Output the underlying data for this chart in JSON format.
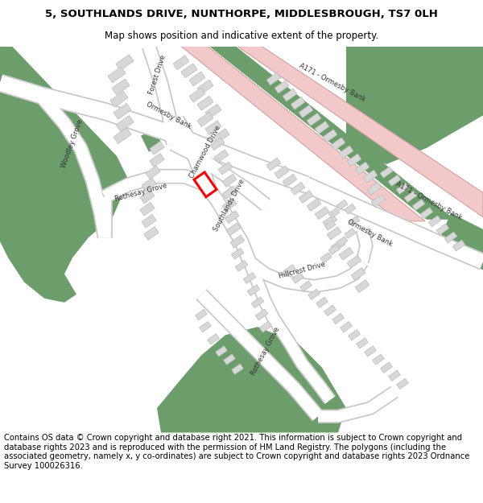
{
  "title_line1": "5, SOUTHLANDS DRIVE, NUNTHORPE, MIDDLESBROUGH, TS7 0LH",
  "title_line2": "Map shows position and indicative extent of the property.",
  "footer_text": "Contains OS data © Crown copyright and database right 2021. This information is subject to Crown copyright and database rights 2023 and is reproduced with the permission of HM Land Registry. The polygons (including the associated geometry, namely x, y co-ordinates) are subject to Crown copyright and database rights 2023 Ordnance Survey 100026316.",
  "bg_color": "#ffffff",
  "map_bg": "#ffffff",
  "road_color": "#ffffff",
  "road_stroke": "#cccccc",
  "major_road_fill": "#f2c8c8",
  "major_road_stroke": "#d4a0a0",
  "green_color": "#6b9e6b",
  "building_fill": "#d8d8d8",
  "building_stroke": "#bbbbbb",
  "highlight_fill": "#ffffff",
  "highlight_stroke": "#ff0000",
  "title_fontsize": 9.5,
  "subtitle_fontsize": 8.5,
  "footer_fontsize": 7.2,
  "label_fontsize": 6.0
}
